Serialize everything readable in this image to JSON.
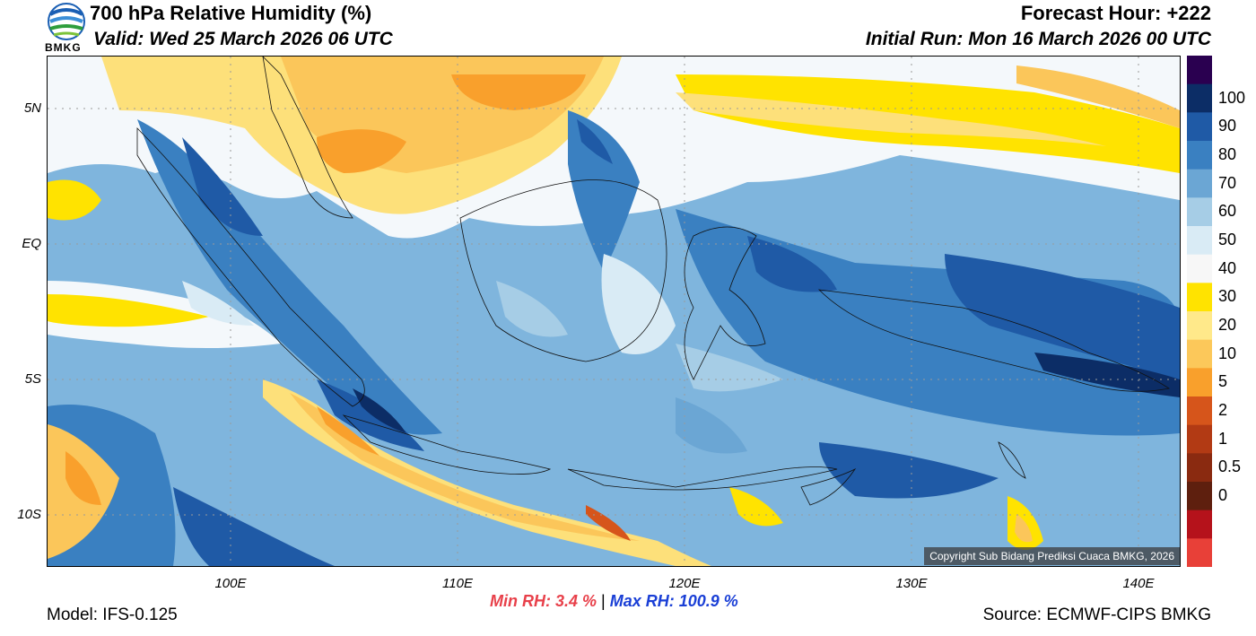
{
  "header": {
    "title": "700 hPa Relative Humidity (%)",
    "valid": "Valid: Wed 25 March 2026 06 UTC",
    "forecast_hour": "Forecast Hour: +222",
    "initial_run": "Initial Run: Mon 16 March 2026 00 UTC",
    "logo_text": "BMKG"
  },
  "footer": {
    "model": "Model: IFS-0.125",
    "source": "Source: ECMWF-CIPS BMKG",
    "min_label": "Min RH:",
    "min_value": "3.4 %",
    "separator": "|",
    "max_label": "Max RH: 100.9 %",
    "copyright": "Copyright Sub Bidang Prediksi Cuaca BMKG, 2026"
  },
  "chart_data": {
    "type": "heatmap",
    "title": "700 hPa Relative Humidity (%)",
    "variable": "Relative Humidity",
    "units": "%",
    "lat_ticks": [
      "5N",
      "EQ",
      "5S",
      "10S"
    ],
    "lon_ticks": [
      "100E",
      "110E",
      "120E",
      "130E",
      "140E"
    ],
    "colorbar_labels": [
      "100",
      "90",
      "80",
      "70",
      "60",
      "50",
      "40",
      "30",
      "20",
      "10",
      "5",
      "2",
      "1",
      "0.5",
      "0"
    ],
    "colorbar_colors": [
      "#2a0050",
      "#0c2d66",
      "#1f5aa6",
      "#3a80c1",
      "#6ba6d4",
      "#a6cde6",
      "#d9ebf5",
      "#f7f7f7",
      "#ffe300",
      "#ffe98a",
      "#fcc85a",
      "#f9a02c",
      "#d6551b",
      "#b23a14",
      "#8a2a10",
      "#5e1f0e",
      "#b5121b",
      "#e84038"
    ],
    "min_rh": 3.4,
    "max_rh": 100.9
  }
}
